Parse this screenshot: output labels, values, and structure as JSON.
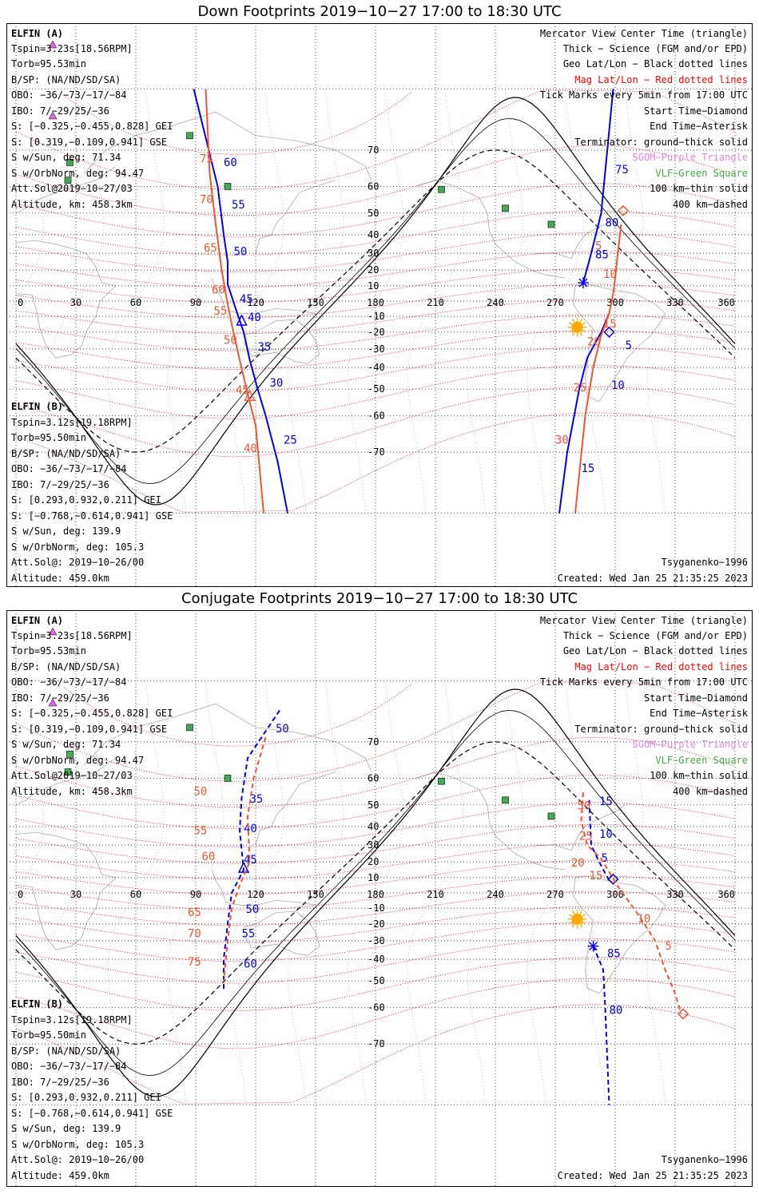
{
  "panels": [
    {
      "title": "Down Footprints 2019−10−27 17:00 to 18:30 UTC",
      "info_a": {
        "header": "ELFIN (A)",
        "lines": [
          "Tspin=3.23s[18.56RPM]",
          "Torb=95.53min",
          "B/SP: (NA/ND/SD/SA)",
          "OBO: −36/−73/−17/−84",
          "IBO: 7/−29/25/−36",
          "S: [−0.325,−0.455,0.828] GEI",
          "S: [0.319,−0.109,0.941] GSE",
          "S w/Sun, deg: 71.34",
          "S w/OrbNorm, deg: 94.47",
          "Att.Sol@2019−10−27/03",
          "Altitude, km: 458.3km"
        ]
      },
      "info_b": {
        "header": "ELFIN (B)",
        "lines": [
          "Tspin=3.12s[19.18RPM]",
          "Torb=95.50min",
          "B/SP: (NA/ND/SD/SA)",
          "OBO: −36/−73/−17/−84",
          "IBO: 7/−29/25/−36",
          "S: [0.293,0.932,0.211] GEI",
          "S: [−0.768,−0.614,0.941] GSE",
          "S w/Sun, deg: 139.9",
          "S w/OrbNorm, deg: 105.3",
          "Att.Sol@: 2019−10−26/00",
          "Altitude: 459.0km"
        ]
      },
      "footer_right_1": "Tsyganenko−1996",
      "footer_right_2": "Created: Wed Jan 25 21:35:25 2023"
    },
    {
      "title": "Conjugate Footprints 2019−10−27 17:00 to 18:30 UTC",
      "info_a": {
        "header": "ELFIN (A)",
        "lines": [
          "Tspin=3.23s[18.56RPM]",
          "Torb=95.53min",
          "B/SP: (NA/ND/SD/SA)",
          "OBO: −36/−73/−17/−84",
          "IBO: 7/−29/25/−36",
          "S: [−0.325,−0.455,0.828] GEI",
          "S: [0.319,−0.109,0.941] GSE",
          "S w/Sun, deg: 71.34",
          "S w/OrbNorm, deg: 94.47",
          "Att.Sol@2019−10−27/03",
          "Altitude, km: 458.3km"
        ]
      },
      "info_b": {
        "header": "ELFIN (B)",
        "lines": [
          "Tspin=3.12s[19.18RPM]",
          "Torb=95.50min",
          "B/SP: (NA/ND/SD/SA)",
          "OBO: −36/−73/−17/−84",
          "IBO: 7/−29/25/−36",
          "S: [0.293,0.932,0.211] GEI",
          "S: [−0.768,−0.614,0.941] GSE",
          "S w/Sun, deg: 139.9",
          "S w/OrbNorm, deg: 105.3",
          "Att.Sol@: 2019−10−26/00",
          "Altitude: 459.0km"
        ]
      },
      "footer_right_1": "Tsyganenko−1996",
      "footer_right_2": "Created: Wed Jan 25 21:35:25 2023"
    }
  ],
  "legend": [
    {
      "text": "Mercator View Center Time (triangle)",
      "color": "#000000"
    },
    {
      "text": "Thick − Science (FGM and/or EPD)",
      "color": "#000000"
    },
    {
      "text": "Geo Lat/Lon − Black dotted lines",
      "color": "#000000"
    },
    {
      "text": "Mag Lat/Lon − Red dotted lines",
      "color": "#ff0000"
    },
    {
      "text": "Tick Marks every 5min from 17:00 UTC",
      "color": "#000000"
    },
    {
      "text": "Start Time−Diamond",
      "color": "#000000"
    },
    {
      "text": "End Time−Asterisk",
      "color": "#000000"
    },
    {
      "text": "Terminator: ground−thick solid",
      "color": "#000000"
    },
    {
      "text": "SGOM−Purple Triangle",
      "color": "#dd88dd"
    },
    {
      "text": "VLF−Green Square",
      "color": "#44aa44"
    },
    {
      "text": "100 km−thin solid",
      "color": "#000000"
    },
    {
      "text": "400 km−dashed",
      "color": "#000000"
    }
  ],
  "colors": {
    "elfin_a": "#0000ee",
    "elfin_b": "#ee5533",
    "mag_grid": "#ee0000",
    "geo_grid": "#000000",
    "coast": "#aaaaaa",
    "vlf": "#44aa55",
    "sgom": "#dd66dd",
    "sun": "#ffaa00"
  },
  "chart_data": [
    {
      "type": "scatter",
      "title": "Down Footprints 2019−10−27 17:00 to 18:30 UTC",
      "projection": "mercator",
      "xlabel": "",
      "ylabel": "",
      "xlim": [
        0,
        360
      ],
      "ylim": [
        -80,
        80
      ],
      "lon_ticks": [
        0,
        30,
        60,
        90,
        120,
        150,
        180,
        210,
        240,
        270,
        300,
        330,
        360
      ],
      "lat_ticks": [
        70,
        60,
        50,
        40,
        30,
        20,
        10,
        -10,
        -20,
        -30,
        -40,
        -50,
        -60,
        -70
      ],
      "series": [
        {
          "name": "ELFIN (A)",
          "style": "solid",
          "track1": [
            [
              89,
              80
            ],
            [
              101,
              60
            ],
            [
              104,
              40
            ],
            [
              106,
              25
            ],
            [
              106,
              11
            ],
            [
              110,
              -5
            ],
            [
              114,
              -20
            ],
            [
              117,
              -36
            ],
            [
              121,
              -50
            ],
            [
              125,
              -60
            ],
            [
              131,
              -72
            ],
            [
              136,
              -80
            ]
          ],
          "labels1": [
            {
              "t": "60",
              "lon": 104,
              "lat": 66
            },
            {
              "t": "55",
              "lon": 108,
              "lat": 52
            },
            {
              "t": "50",
              "lon": 109,
              "lat": 29
            },
            {
              "t": "45",
              "lon": 112,
              "lat": -1
            },
            {
              "t": "40",
              "lon": 116,
              "lat": -13
            },
            {
              "t": "35",
              "lon": 121,
              "lat": -31
            },
            {
              "t": "30",
              "lon": 127,
              "lat": -49
            },
            {
              "t": "25",
              "lon": 134,
              "lat": -68
            }
          ],
          "track2": [
            [
              272,
              -80
            ],
            [
              276,
              -70
            ],
            [
              282,
              -50
            ],
            [
              286,
              -35
            ],
            [
              293,
              -20
            ],
            [
              297,
              -8
            ]
          ],
          "labels2": [
            {
              "t": "15",
              "lon": 283,
              "lat": -74
            },
            {
              "t": "10",
              "lon": 298,
              "lat": -50
            },
            {
              "t": "5",
              "lon": 305,
              "lat": -30
            }
          ],
          "track3": [
            [
              284,
              12
            ],
            [
              288,
              30
            ],
            [
              293,
              50
            ],
            [
              299,
              80
            ]
          ],
          "labels3": [
            {
              "t": "85",
              "lon": 290,
              "lat": 27
            },
            {
              "t": "80",
              "lon": 295,
              "lat": 44
            },
            {
              "t": "75",
              "lon": 300,
              "lat": 64
            }
          ],
          "start": {
            "lon": 297,
            "lat": -20
          },
          "end": {
            "lon": 284,
            "lat": 12
          },
          "sgom": {
            "lon": 113,
            "lat": -13
          }
        },
        {
          "name": "ELFIN (B)",
          "style": "solid",
          "track1": [
            [
              95,
              80
            ],
            [
              97,
              64
            ],
            [
              100,
              45
            ],
            [
              103,
              20
            ],
            [
              105,
              5
            ],
            [
              108,
              -15
            ],
            [
              112,
              -36
            ],
            [
              116,
              -52
            ],
            [
              120,
              -63
            ],
            [
              124,
              -80
            ]
          ],
          "labels1": [
            {
              "t": "75",
              "lon": 92,
              "lat": 67
            },
            {
              "t": "70",
              "lon": 92,
              "lat": 54
            },
            {
              "t": "65",
              "lon": 94,
              "lat": 31
            },
            {
              "t": "60",
              "lon": 98,
              "lat": 5
            },
            {
              "t": "55",
              "lon": 99,
              "lat": -9
            },
            {
              "t": "50",
              "lon": 104,
              "lat": -27
            },
            {
              "t": "45",
              "lon": 110,
              "lat": -52
            },
            {
              "t": "40",
              "lon": 114,
              "lat": -70
            }
          ],
          "track2": [
            [
              280,
              -80
            ],
            [
              285,
              -60
            ],
            [
              289,
              -40
            ],
            [
              293,
              -22
            ],
            [
              297,
              -8
            ],
            [
              299,
              5
            ],
            [
              300,
              15
            ],
            [
              301,
              27
            ],
            [
              303,
              45
            ]
          ],
          "labels2": [
            {
              "t": "30",
              "lon": 270,
              "lat": -68
            },
            {
              "t": "25",
              "lon": 279,
              "lat": -51
            },
            {
              "t": "20",
              "lon": 286,
              "lat": -28
            },
            {
              "t": "15",
              "lon": 294,
              "lat": -17
            },
            {
              "t": "10",
              "lon": 294,
              "lat": 15
            },
            {
              "t": "5",
              "lon": 290,
              "lat": 32
            }
          ],
          "start": {
            "lon": 304,
            "lat": 51
          },
          "sgom": {
            "lon": 117,
            "lat": -53
          }
        }
      ],
      "vlf_stations": [
        [
          87,
          73
        ],
        [
          27,
          67
        ],
        [
          26,
          62
        ],
        [
          106,
          60
        ],
        [
          213,
          59
        ],
        [
          245,
          52
        ],
        [
          268,
          45
        ]
      ],
      "sun": {
        "lon": 281,
        "lat": -17
      }
    },
    {
      "type": "scatter",
      "title": "Conjugate Footprints 2019−10−27 17:00 to 18:30 UTC",
      "projection": "mercator",
      "xlabel": "",
      "ylabel": "",
      "xlim": [
        0,
        360
      ],
      "ylim": [
        -80,
        80
      ],
      "lon_ticks": [
        0,
        30,
        60,
        90,
        120,
        150,
        180,
        210,
        240,
        270,
        300,
        330,
        360
      ],
      "lat_ticks": [
        70,
        60,
        50,
        40,
        30,
        20,
        10,
        -10,
        -20,
        -30,
        -40,
        -50,
        -60,
        -70
      ],
      "series": [
        {
          "name": "ELFIN (A)",
          "style": "dashed",
          "track1": [
            [
              132,
              76
            ],
            [
              116,
              66
            ],
            [
              113,
              53
            ],
            [
              112,
              38
            ],
            [
              114,
              15
            ],
            [
              108,
              0
            ],
            [
              106,
              -20
            ],
            [
              104,
              -40
            ],
            [
              104,
              -54
            ]
          ],
          "labels1": [
            {
              "t": "50",
              "lon": 130,
              "lat": 72
            },
            {
              "t": "35",
              "lon": 117,
              "lat": 51
            },
            {
              "t": "40",
              "lon": 114,
              "lat": 37
            },
            {
              "t": "45",
              "lon": 114,
              "lat": 19
            },
            {
              "t": "50",
              "lon": 115,
              "lat": -13
            },
            {
              "t": "55",
              "lon": 113,
              "lat": -28
            },
            {
              "t": "60",
              "lon": 114,
              "lat": -44
            }
          ],
          "track2": [
            [
              287,
              52
            ],
            [
              288,
              30
            ],
            [
              292,
              20
            ],
            [
              297,
              8
            ]
          ],
          "labels2": [
            {
              "t": "15",
              "lon": 292,
              "lat": 50
            },
            {
              "t": "10",
              "lon": 292,
              "lat": 34
            },
            {
              "t": "5",
              "lon": 293,
              "lat": 20
            }
          ],
          "track3": [
            [
              289,
              -33
            ],
            [
              294,
              -45
            ],
            [
              295,
              -60
            ],
            [
              297,
              -80
            ]
          ],
          "labels3": [
            {
              "t": "85",
              "lon": 296,
              "lat": -39
            },
            {
              "t": "80",
              "lon": 297,
              "lat": -62
            }
          ],
          "start": {
            "lon": 299,
            "lat": 9
          },
          "end": {
            "lon": 289,
            "lat": -33
          },
          "sgom": {
            "lon": 114,
            "lat": 16
          }
        },
        {
          "name": "ELFIN (B)",
          "style": "dashed",
          "track1": [
            [
              125,
              71
            ],
            [
              119,
              60
            ],
            [
              116,
              45
            ],
            [
              117,
              20
            ],
            [
              112,
              5
            ],
            [
              108,
              -10
            ],
            [
              106,
              -30
            ],
            [
              104,
              -50
            ]
          ],
          "labels1": [
            {
              "t": "50",
              "lon": 89,
              "lat": 54
            },
            {
              "t": "55",
              "lon": 89,
              "lat": 36
            },
            {
              "t": "60",
              "lon": 93,
              "lat": 21
            },
            {
              "t": "65",
              "lon": 86,
              "lat": -15
            },
            {
              "t": "70",
              "lon": 86,
              "lat": -28
            },
            {
              "t": "75",
              "lon": 86,
              "lat": -43
            }
          ],
          "track2": [
            [
              284,
              55
            ],
            [
              283,
              43
            ],
            [
              286,
              30
            ],
            [
              293,
              22
            ],
            [
              301,
              5
            ],
            [
              312,
              -15
            ],
            [
              320,
              -30
            ],
            [
              325,
              -45
            ],
            [
              330,
              -55
            ],
            [
              333,
              -62
            ]
          ],
          "labels2": [
            {
              "t": "50",
              "lon": 281,
              "lat": 48
            },
            {
              "t": "25",
              "lon": 282,
              "lat": 33
            },
            {
              "t": "20",
              "lon": 278,
              "lat": 17
            },
            {
              "t": "15",
              "lon": 287,
              "lat": 9
            },
            {
              "t": "10",
              "lon": 311,
              "lat": -19
            },
            {
              "t": "5",
              "lon": 325,
              "lat": -35
            }
          ],
          "start": {
            "lon": 334,
            "lat": -62
          }
        }
      ],
      "vlf_stations": [
        [
          87,
          73
        ],
        [
          27,
          67
        ],
        [
          26,
          62
        ],
        [
          106,
          60
        ],
        [
          213,
          59
        ],
        [
          245,
          52
        ],
        [
          268,
          45
        ]
      ],
      "sun": {
        "lon": 281,
        "lat": -17
      }
    }
  ]
}
